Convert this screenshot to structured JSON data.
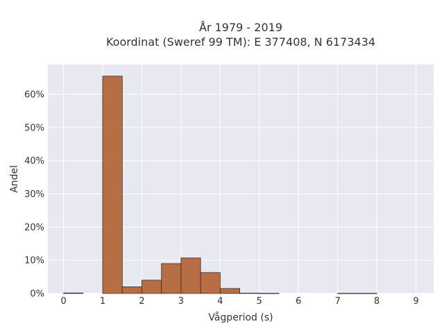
{
  "chart_data": {
    "type": "bar",
    "title": [
      "År 1979 - 2019",
      "Koordinat (Sweref 99 TM): E 377408, N 6173434"
    ],
    "xlabel": "Vågperiod (s)",
    "ylabel": "Andel",
    "xlim": [
      -0.4,
      9.45
    ],
    "ylim": [
      0,
      0.69
    ],
    "xticks": [
      0,
      1,
      2,
      3,
      4,
      5,
      6,
      7,
      8,
      9
    ],
    "yticks": [
      0,
      0.1,
      0.2,
      0.3,
      0.4,
      0.5,
      0.6
    ],
    "ytick_labels": [
      "0%",
      "10%",
      "20%",
      "30%",
      "40%",
      "50%",
      "60%"
    ],
    "bin_width": 0.5,
    "bins": [
      {
        "x0": 0.0,
        "x1": 0.5,
        "value": 0.0015
      },
      {
        "x0": 1.0,
        "x1": 1.5,
        "value": 0.655
      },
      {
        "x0": 1.5,
        "x1": 2.0,
        "value": 0.02
      },
      {
        "x0": 2.0,
        "x1": 2.5,
        "value": 0.04
      },
      {
        "x0": 2.5,
        "x1": 3.0,
        "value": 0.09
      },
      {
        "x0": 3.0,
        "x1": 3.5,
        "value": 0.107
      },
      {
        "x0": 3.5,
        "x1": 4.0,
        "value": 0.063
      },
      {
        "x0": 4.0,
        "x1": 4.5,
        "value": 0.015
      },
      {
        "x0": 4.5,
        "x1": 5.0,
        "value": 0.001
      },
      {
        "x0": 5.0,
        "x1": 5.5,
        "value": 0.0005
      },
      {
        "x0": 7.0,
        "x1": 7.5,
        "value": 0.0005
      },
      {
        "x0": 7.5,
        "x1": 8.0,
        "value": 0.0005
      }
    ],
    "bar_color": "#b5673a",
    "bar_edge": "#3a2a20",
    "plot_background": "#e8e8f0",
    "grid": true
  }
}
